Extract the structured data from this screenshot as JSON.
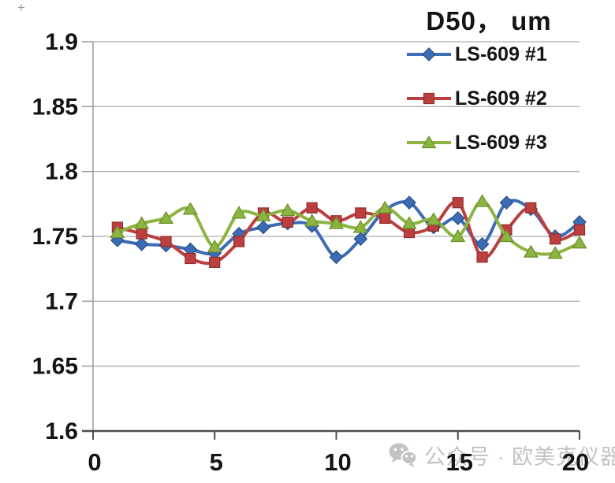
{
  "artifact": {
    "plus_mark": "+"
  },
  "chart_data": {
    "type": "line",
    "title": "D50， um",
    "xlabel": "",
    "ylabel": "",
    "xlim": [
      0,
      20
    ],
    "ylim": [
      1.6,
      1.9
    ],
    "grid": "horizontal",
    "legend_position": "top-right-overlay",
    "line_style": "smooth",
    "axis_color": "#4d4d4d",
    "grid_color": "#afafaf",
    "text_color": "#141414",
    "x_ticks": [
      {
        "label": "0",
        "value": 0
      },
      {
        "label": "5",
        "value": 5
      },
      {
        "label": "10",
        "value": 10
      },
      {
        "label": "15",
        "value": 15
      },
      {
        "label": "20",
        "value": 20
      }
    ],
    "y_ticks": [
      {
        "label": "1.9",
        "value": 1.9
      },
      {
        "label": "1.85",
        "value": 1.85
      },
      {
        "label": "1.8",
        "value": 1.8
      },
      {
        "label": "1.75",
        "value": 1.75
      },
      {
        "label": "1.7",
        "value": 1.7
      },
      {
        "label": "1.65",
        "value": 1.65
      },
      {
        "label": "1.6",
        "value": 1.6
      }
    ],
    "x": [
      1,
      2,
      3,
      4,
      5,
      6,
      7,
      8,
      9,
      10,
      11,
      12,
      13,
      14,
      15,
      16,
      17,
      18,
      19,
      20
    ],
    "series": [
      {
        "name": "LS-609 #1",
        "marker": "diamond",
        "color": "#3c6cb5",
        "edge": "#2a4e80",
        "values": [
          1.747,
          1.744,
          1.743,
          1.74,
          1.737,
          1.752,
          1.757,
          1.76,
          1.758,
          1.734,
          1.748,
          1.77,
          1.776,
          1.757,
          1.764,
          1.744,
          1.776,
          1.771,
          1.75,
          1.761
        ]
      },
      {
        "name": "LS-609 #2",
        "marker": "square",
        "color": "#bc3f3f",
        "edge": "#8e2f2f",
        "values": [
          1.757,
          1.752,
          1.746,
          1.733,
          1.73,
          1.746,
          1.768,
          1.761,
          1.772,
          1.762,
          1.768,
          1.764,
          1.753,
          1.758,
          1.776,
          1.734,
          1.755,
          1.772,
          1.748,
          1.755
        ]
      },
      {
        "name": "LS-609 #3",
        "marker": "triangle",
        "color": "#8cb440",
        "edge": "#6b8f2e",
        "values": [
          1.753,
          1.76,
          1.764,
          1.771,
          1.742,
          1.768,
          1.766,
          1.77,
          1.762,
          1.76,
          1.757,
          1.772,
          1.76,
          1.763,
          1.75,
          1.777,
          1.75,
          1.738,
          1.737,
          1.745
        ]
      }
    ]
  },
  "watermark": {
    "icon": "wechat-icon",
    "text": "公众号 · 欧美克仪器",
    "color": "#c3c3c3"
  }
}
